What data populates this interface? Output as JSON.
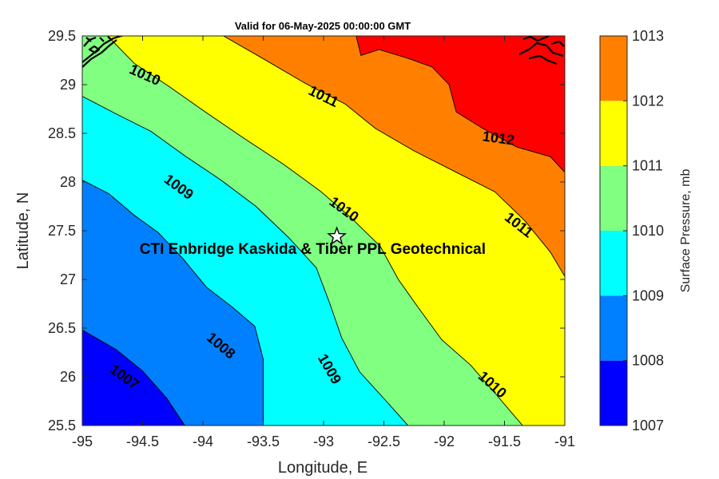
{
  "chart_data": {
    "type": "contour",
    "title": "Valid for 06-May-2025 00:00:00 GMT",
    "xlabel": "Longitude, E",
    "ylabel": "Latitude, N",
    "xlim": [
      -95,
      -91
    ],
    "ylim": [
      25.5,
      29.5
    ],
    "xticks": [
      -95,
      -94.5,
      -94,
      -93.5,
      -93,
      -92.5,
      -92,
      -91.5,
      -91
    ],
    "yticks": [
      25.5,
      26,
      26.5,
      27,
      27.5,
      28,
      28.5,
      29,
      29.5
    ],
    "colorbar": {
      "label": "Surface Pressure, mb",
      "ticks": [
        1007,
        1008,
        1009,
        1010,
        1011,
        1012,
        1013
      ],
      "colors": [
        "#0000ff",
        "#0080ff",
        "#00ffff",
        "#80ff80",
        "#ffff00",
        "#ff8000",
        "#ff0000"
      ]
    },
    "levels": [
      {
        "level": 1007,
        "line": [
          [
            -95,
            26.48
          ],
          [
            -94.72,
            26.28
          ],
          [
            -94.5,
            26.06
          ],
          [
            -94.3,
            25.78
          ],
          [
            -94.15,
            25.5
          ]
        ]
      },
      {
        "level": 1008,
        "line": [
          [
            -95,
            28.02
          ],
          [
            -94.78,
            27.88
          ],
          [
            -94.57,
            27.66
          ],
          [
            -94.37,
            27.48
          ],
          [
            -94.17,
            27.22
          ],
          [
            -93.97,
            26.92
          ],
          [
            -93.76,
            26.72
          ],
          [
            -93.57,
            26.52
          ],
          [
            -93.5,
            26.18
          ],
          [
            -93.5,
            25.5
          ]
        ]
      },
      {
        "level": 1009,
        "line": [
          [
            -95,
            28.88
          ],
          [
            -94.72,
            28.7
          ],
          [
            -94.43,
            28.52
          ],
          [
            -94.15,
            28.27
          ],
          [
            -93.85,
            28.02
          ],
          [
            -93.56,
            27.75
          ],
          [
            -93.29,
            27.43
          ],
          [
            -93.06,
            27.12
          ],
          [
            -92.95,
            26.76
          ],
          [
            -92.85,
            26.4
          ],
          [
            -92.7,
            26.05
          ],
          [
            -92.48,
            25.75
          ],
          [
            -92.3,
            25.5
          ]
        ]
      },
      {
        "level": 1010,
        "line": [
          [
            -94.79,
            29.5
          ],
          [
            -94.57,
            29.22
          ],
          [
            -94.28,
            28.98
          ],
          [
            -93.98,
            28.72
          ],
          [
            -93.66,
            28.45
          ],
          [
            -93.33,
            28.18
          ],
          [
            -93.02,
            27.9
          ],
          [
            -92.76,
            27.62
          ],
          [
            -92.53,
            27.34
          ],
          [
            -92.38,
            27.0
          ],
          [
            -92.22,
            26.72
          ],
          [
            -92.02,
            26.38
          ],
          [
            -91.78,
            26.12
          ],
          [
            -91.57,
            25.82
          ],
          [
            -91.35,
            25.5
          ]
        ]
      },
      {
        "level": 1011,
        "line": [
          [
            -93.83,
            29.5
          ],
          [
            -93.52,
            29.28
          ],
          [
            -93.16,
            29.02
          ],
          [
            -92.82,
            28.8
          ],
          [
            -92.57,
            28.55
          ],
          [
            -92.25,
            28.32
          ],
          [
            -91.9,
            28.1
          ],
          [
            -91.58,
            27.9
          ],
          [
            -91.33,
            27.6
          ],
          [
            -91.12,
            27.28
          ],
          [
            -91.0,
            27.03
          ]
        ]
      },
      {
        "level": 1012,
        "line": [
          [
            -92.73,
            29.5
          ],
          [
            -92.69,
            29.3
          ],
          [
            -92.54,
            29.36
          ],
          [
            -92.3,
            29.27
          ],
          [
            -92.1,
            29.18
          ],
          [
            -91.96,
            29.0
          ],
          [
            -91.9,
            28.72
          ],
          [
            -91.68,
            28.55
          ],
          [
            -91.4,
            28.36
          ],
          [
            -91.12,
            28.26
          ],
          [
            -91.0,
            28.1
          ]
        ]
      }
    ],
    "contour_labels": [
      {
        "text": "1007",
        "x": -94.65,
        "y": 26.0,
        "angle": 36
      },
      {
        "text": "1008",
        "x": -93.85,
        "y": 26.32,
        "angle": 40
      },
      {
        "text": "1009",
        "x": -94.2,
        "y": 27.95,
        "angle": 36
      },
      {
        "text": "1009",
        "x": -92.95,
        "y": 26.08,
        "angle": 60
      },
      {
        "text": "1010",
        "x": -94.48,
        "y": 29.1,
        "angle": 24
      },
      {
        "text": "1010",
        "x": -92.83,
        "y": 27.72,
        "angle": 36
      },
      {
        "text": "1010",
        "x": -91.6,
        "y": 25.92,
        "angle": 42
      },
      {
        "text": "1011",
        "x": -93.0,
        "y": 28.88,
        "angle": 26
      },
      {
        "text": "1011",
        "x": -91.38,
        "y": 27.56,
        "angle": 38
      },
      {
        "text": "1012",
        "x": -91.55,
        "y": 28.45,
        "angle": 8
      }
    ],
    "marker": {
      "x": -92.89,
      "y": 27.44,
      "symbol": "star"
    },
    "annotation": {
      "text": "CTI Enbridge  Kaskida & Tiber PPL Geotechnical",
      "x": -93.09,
      "y": 27.32
    }
  }
}
